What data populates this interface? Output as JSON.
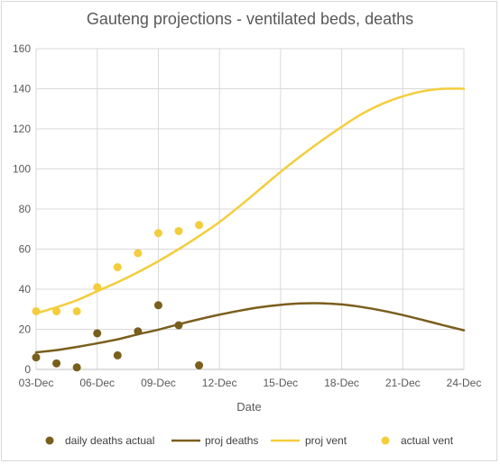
{
  "chart_data": {
    "type": "line",
    "title": "Gauteng projections - ventilated beds, deaths",
    "xlabel": "Date",
    "ylabel": "",
    "x_ticks": [
      "03-Dec",
      "06-Dec",
      "09-Dec",
      "12-Dec",
      "15-Dec",
      "18-Dec",
      "21-Dec",
      "24-Dec"
    ],
    "x_range_days": [
      0,
      21
    ],
    "ylim": [
      0,
      160
    ],
    "y_ticks": [
      0,
      20,
      40,
      60,
      80,
      100,
      120,
      140,
      160
    ],
    "grid": "vertical and horizontal",
    "legend_position": "bottom",
    "series": [
      {
        "name": "daily deaths actual",
        "kind": "points",
        "color": "#7a5e1c",
        "points": [
          {
            "x": "03-Dec",
            "y": 6
          },
          {
            "x": "04-Dec",
            "y": 3
          },
          {
            "x": "05-Dec",
            "y": 1
          },
          {
            "x": "06-Dec",
            "y": 18
          },
          {
            "x": "07-Dec",
            "y": 7
          },
          {
            "x": "08-Dec",
            "y": 19
          },
          {
            "x": "09-Dec",
            "y": 32
          },
          {
            "x": "10-Dec",
            "y": 22
          },
          {
            "x": "11-Dec",
            "y": 2
          }
        ]
      },
      {
        "name": "proj deaths",
        "kind": "line",
        "color": "#7a5e1c",
        "points": [
          {
            "x": "03-Dec",
            "y": 8.5
          },
          {
            "x": "04-Dec",
            "y": 9.6
          },
          {
            "x": "05-Dec",
            "y": 11.2
          },
          {
            "x": "06-Dec",
            "y": 13
          },
          {
            "x": "07-Dec",
            "y": 15
          },
          {
            "x": "08-Dec",
            "y": 17.5
          },
          {
            "x": "09-Dec",
            "y": 19.8
          },
          {
            "x": "10-Dec",
            "y": 22.5
          },
          {
            "x": "11-Dec",
            "y": 25
          },
          {
            "x": "12-Dec",
            "y": 27.3
          },
          {
            "x": "13-Dec",
            "y": 29.3
          },
          {
            "x": "14-Dec",
            "y": 31
          },
          {
            "x": "15-Dec",
            "y": 32.2
          },
          {
            "x": "16-Dec",
            "y": 32.9
          },
          {
            "x": "17-Dec",
            "y": 33
          },
          {
            "x": "18-Dec",
            "y": 32.4
          },
          {
            "x": "19-Dec",
            "y": 31.1
          },
          {
            "x": "20-Dec",
            "y": 29.3
          },
          {
            "x": "21-Dec",
            "y": 27.1
          },
          {
            "x": "22-Dec",
            "y": 24.6
          },
          {
            "x": "23-Dec",
            "y": 22
          },
          {
            "x": "24-Dec",
            "y": 19.5
          }
        ]
      },
      {
        "name": "proj vent",
        "kind": "line",
        "color": "#f4cd3c",
        "points": [
          {
            "x": "03-Dec",
            "y": 28
          },
          {
            "x": "04-Dec",
            "y": 31
          },
          {
            "x": "05-Dec",
            "y": 34.5
          },
          {
            "x": "06-Dec",
            "y": 39
          },
          {
            "x": "07-Dec",
            "y": 43.5
          },
          {
            "x": "08-Dec",
            "y": 48.5
          },
          {
            "x": "09-Dec",
            "y": 54
          },
          {
            "x": "10-Dec",
            "y": 60
          },
          {
            "x": "11-Dec",
            "y": 66.5
          },
          {
            "x": "12-Dec",
            "y": 73.5
          },
          {
            "x": "13-Dec",
            "y": 81.5
          },
          {
            "x": "14-Dec",
            "y": 90
          },
          {
            "x": "15-Dec",
            "y": 98.5
          },
          {
            "x": "16-Dec",
            "y": 106.5
          },
          {
            "x": "17-Dec",
            "y": 114
          },
          {
            "x": "18-Dec",
            "y": 121
          },
          {
            "x": "19-Dec",
            "y": 127.5
          },
          {
            "x": "20-Dec",
            "y": 132.5
          },
          {
            "x": "21-Dec",
            "y": 136.2
          },
          {
            "x": "22-Dec",
            "y": 138.8
          },
          {
            "x": "23-Dec",
            "y": 140
          },
          {
            "x": "24-Dec",
            "y": 140
          }
        ]
      },
      {
        "name": "actual vent",
        "kind": "points",
        "color": "#f4cd3c",
        "points": [
          {
            "x": "03-Dec",
            "y": 29
          },
          {
            "x": "04-Dec",
            "y": 29
          },
          {
            "x": "05-Dec",
            "y": 29
          },
          {
            "x": "06-Dec",
            "y": 41
          },
          {
            "x": "07-Dec",
            "y": 51
          },
          {
            "x": "08-Dec",
            "y": 58
          },
          {
            "x": "09-Dec",
            "y": 68
          },
          {
            "x": "10-Dec",
            "y": 69
          },
          {
            "x": "11-Dec",
            "y": 72
          }
        ]
      }
    ]
  }
}
